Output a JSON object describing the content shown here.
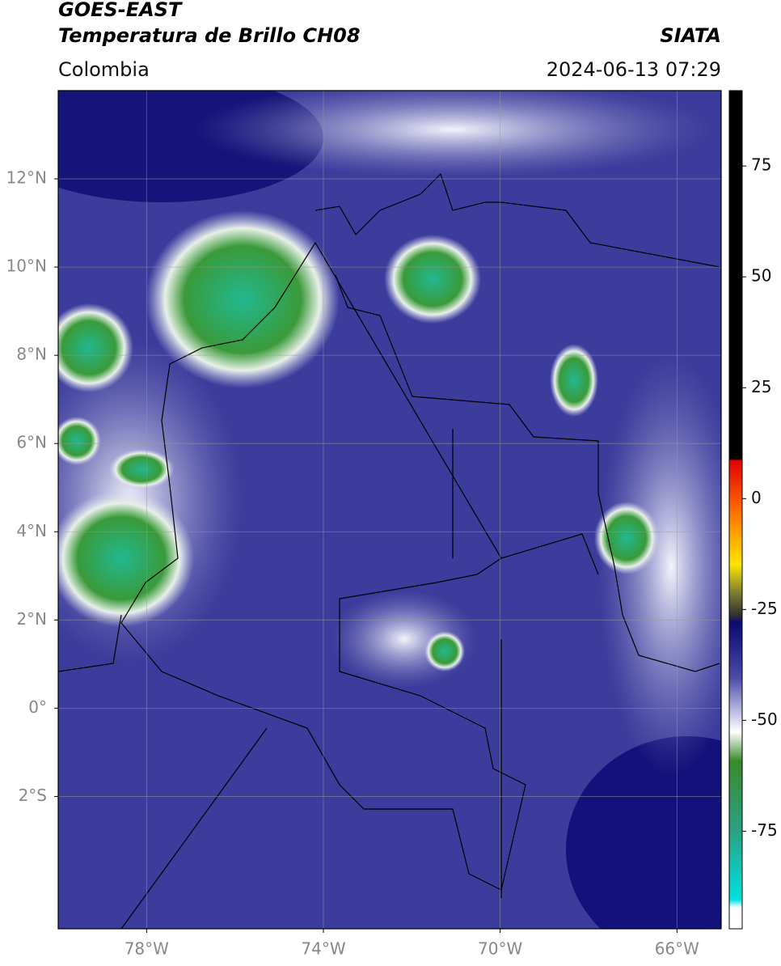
{
  "header": {
    "title": "GOES-EAST",
    "subtitle": "Temperatura de Brillo CH08",
    "source": "SIATA",
    "region": "Colombia",
    "datetime": "2024-06-13 07:29"
  },
  "map": {
    "lonlim": [
      -80,
      -65
    ],
    "latlim": [
      -5,
      14
    ],
    "grid": true,
    "xticks": [
      {
        "value": -78,
        "label": "78°W"
      },
      {
        "value": -74,
        "label": "74°W"
      },
      {
        "value": -70,
        "label": "70°W"
      },
      {
        "value": -66,
        "label": "66°W"
      }
    ],
    "yticks": [
      {
        "value": 12,
        "label": "12°N"
      },
      {
        "value": 10,
        "label": "10°N"
      },
      {
        "value": 8,
        "label": "8°N"
      },
      {
        "value": 6,
        "label": "6°N"
      },
      {
        "value": 4,
        "label": "4°N"
      },
      {
        "value": 2,
        "label": "2°N"
      },
      {
        "value": 0,
        "label": "0°"
      },
      {
        "value": -2,
        "label": "2°S"
      }
    ]
  },
  "colorbar": {
    "lim": [
      -97,
      92
    ],
    "ticks": [
      75,
      50,
      25,
      0,
      -25,
      -50,
      -75
    ]
  }
}
